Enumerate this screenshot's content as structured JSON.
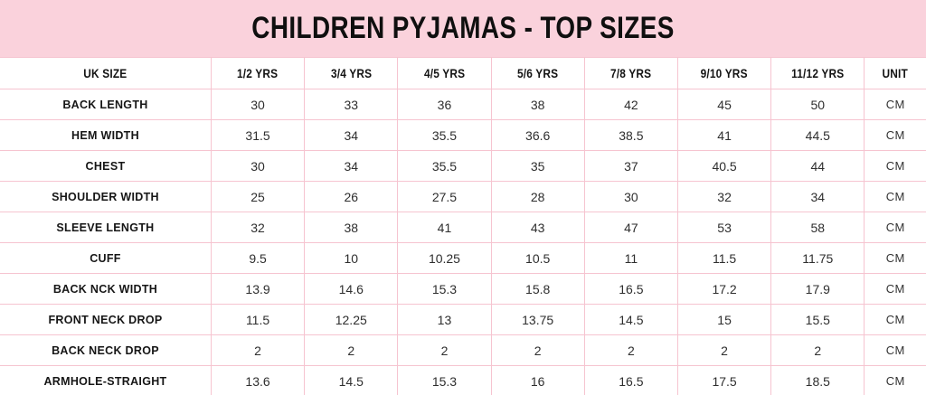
{
  "title": "CHILDREN PYJAMAS - TOP SIZES",
  "colors": {
    "banner_bg": "#FAD2DC",
    "table_border": "#F6C4D0",
    "table_bg": "#FFFFFF",
    "title_text": "#0F0F0F",
    "value_text": "#2E2E2E"
  },
  "chart_data": {
    "type": "table",
    "title": "CHILDREN PYJAMAS - TOP SIZES",
    "unit": "CM",
    "columns": [
      "UK SIZE",
      "1/2 YRS",
      "3/4 YRS",
      "4/5 YRS",
      "5/6 YRS",
      "7/8 YRS",
      "9/10 YRS",
      "11/12 YRS",
      "UNIT"
    ],
    "rows": [
      [
        "BACK LENGTH",
        "30",
        "33",
        "36",
        "38",
        "42",
        "45",
        "50",
        "CM"
      ],
      [
        "HEM WIDTH",
        "31.5",
        "34",
        "35.5",
        "36.6",
        "38.5",
        "41",
        "44.5",
        "CM"
      ],
      [
        "CHEST",
        "30",
        "34",
        "35.5",
        "35",
        "37",
        "40.5",
        "44",
        "CM"
      ],
      [
        "SHOULDER WIDTH",
        "25",
        "26",
        "27.5",
        "28",
        "30",
        "32",
        "34",
        "CM"
      ],
      [
        "SLEEVE LENGTH",
        "32",
        "38",
        "41",
        "43",
        "47",
        "53",
        "58",
        "CM"
      ],
      [
        "CUFF",
        "9.5",
        "10",
        "10.25",
        "10.5",
        "11",
        "11.5",
        "11.75",
        "CM"
      ],
      [
        "BACK NCK WIDTH",
        "13.9",
        "14.6",
        "15.3",
        "15.8",
        "16.5",
        "17.2",
        "17.9",
        "CM"
      ],
      [
        "FRONT NECK DROP",
        "11.5",
        "12.25",
        "13",
        "13.75",
        "14.5",
        "15",
        "15.5",
        "CM"
      ],
      [
        "BACK NECK DROP",
        "2",
        "2",
        "2",
        "2",
        "2",
        "2",
        "2",
        "CM"
      ],
      [
        "ARMHOLE-STRAIGHT",
        "13.6",
        "14.5",
        "15.3",
        "16",
        "16.5",
        "17.5",
        "18.5",
        "CM"
      ]
    ]
  }
}
